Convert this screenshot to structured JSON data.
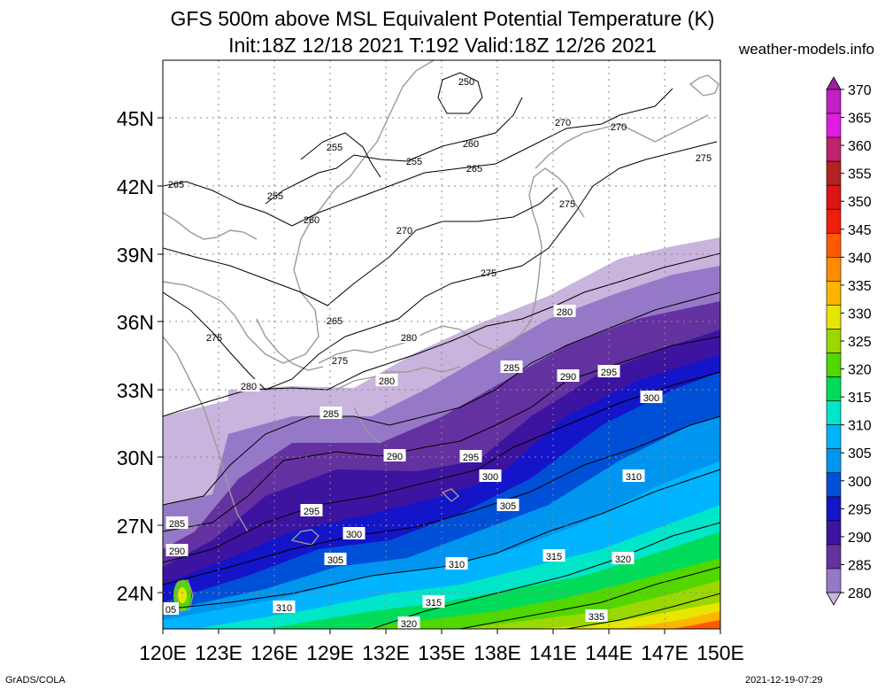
{
  "title_line1": "GFS 500m above MSL Equivalent Potential Temperature (K)",
  "title_line2": "Init:18Z 12/18 2021 T:192 Valid:18Z 12/26 2021",
  "site": "weather-models.info",
  "footer_left": "GrADS/COLA",
  "footer_right": "2021-12-19-07:29",
  "map": {
    "lat_labels": [
      "45N",
      "42N",
      "39N",
      "36N",
      "33N",
      "30N",
      "27N",
      "24N"
    ],
    "lon_labels": [
      "120E",
      "123E",
      "126E",
      "129E",
      "132E",
      "135E",
      "138E",
      "141E",
      "144E",
      "147E",
      "150E"
    ],
    "colorbar_labels": [
      "370",
      "365",
      "360",
      "355",
      "350",
      "345",
      "340",
      "335",
      "330",
      "325",
      "320",
      "315",
      "310",
      "305",
      "300",
      "295",
      "290",
      "285",
      "280"
    ],
    "colorbar_colors": [
      "#a020a0",
      "#c31fc7",
      "#e01ce0",
      "#c0226c",
      "#b22222",
      "#dc1414",
      "#f01e0a",
      "#ff5a00",
      "#ff8c00",
      "#ffb400",
      "#e6e600",
      "#9bd700",
      "#52d700",
      "#00dc5a",
      "#00e6c8",
      "#00b4ff",
      "#0096f0",
      "#0050d7",
      "#1414c8",
      "#3c14a0",
      "#6432a0",
      "#9678c8",
      "#c8b4dc"
    ],
    "contour_labels": [
      {
        "text": "250"
      },
      {
        "text": "255"
      },
      {
        "text": "255"
      },
      {
        "text": "255"
      },
      {
        "text": "260"
      },
      {
        "text": "260"
      },
      {
        "text": "265"
      },
      {
        "text": "265"
      },
      {
        "text": "265"
      },
      {
        "text": "270"
      },
      {
        "text": "270"
      },
      {
        "text": "270"
      },
      {
        "text": "275"
      },
      {
        "text": "275"
      },
      {
        "text": "275"
      },
      {
        "text": "275"
      },
      {
        "text": "275"
      },
      {
        "text": "280"
      },
      {
        "text": "280"
      },
      {
        "text": "280"
      },
      {
        "text": "280"
      },
      {
        "text": "285"
      },
      {
        "text": "285"
      },
      {
        "text": "285"
      },
      {
        "text": "290"
      },
      {
        "text": "290"
      },
      {
        "text": "290"
      },
      {
        "text": "295"
      },
      {
        "text": "295"
      },
      {
        "text": "295"
      },
      {
        "text": "300"
      },
      {
        "text": "300"
      },
      {
        "text": "300"
      },
      {
        "text": "305"
      },
      {
        "text": "305"
      },
      {
        "text": "05"
      },
      {
        "text": "310"
      },
      {
        "text": "310"
      },
      {
        "text": "310"
      },
      {
        "text": "315"
      },
      {
        "text": "315"
      },
      {
        "text": "320"
      },
      {
        "text": "320"
      },
      {
        "text": "335"
      }
    ]
  }
}
